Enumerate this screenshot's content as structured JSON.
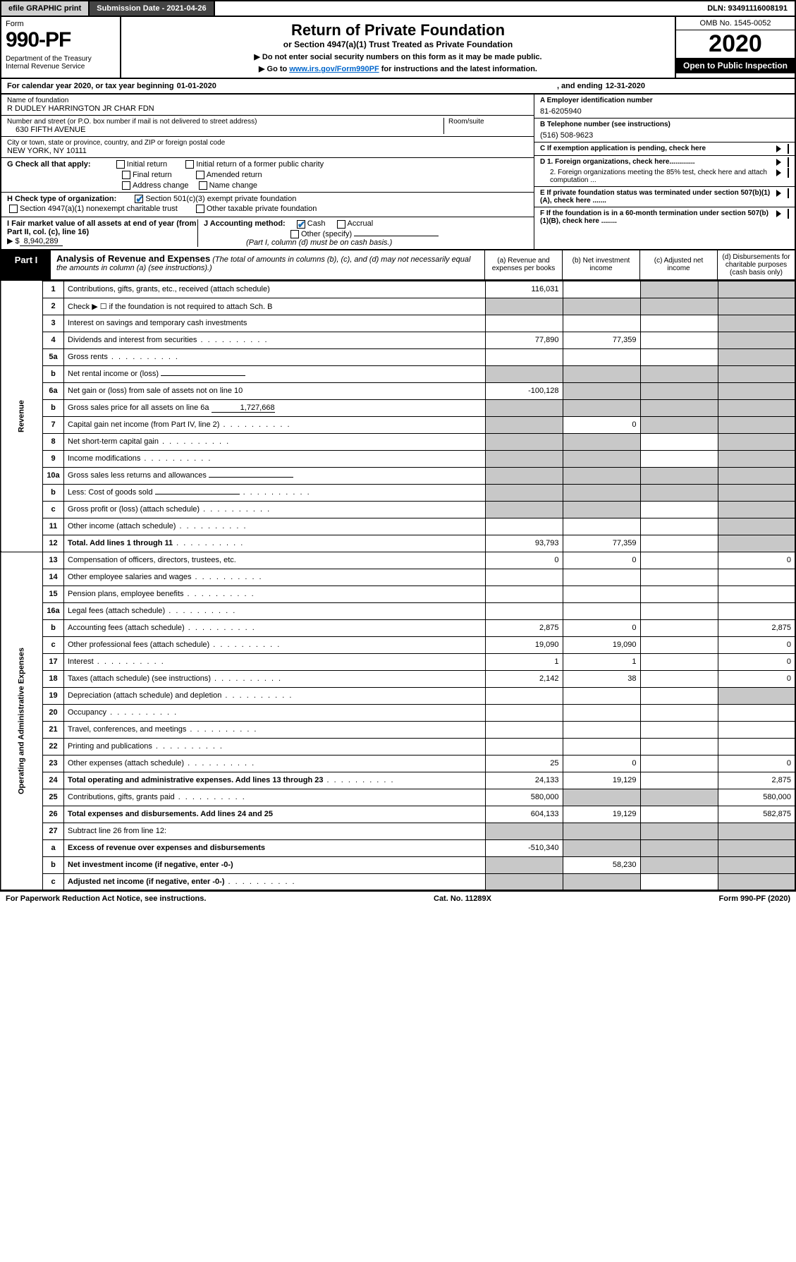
{
  "topbar": {
    "efile": "efile GRAPHIC print",
    "submission": "Submission Date - 2021-04-26",
    "dln": "DLN: 93491116008191"
  },
  "header": {
    "form_word": "Form",
    "form_num": "990-PF",
    "dept": "Department of the Treasury\nInternal Revenue Service",
    "title": "Return of Private Foundation",
    "subtitle": "or Section 4947(a)(1) Trust Treated as Private Foundation",
    "note1": "▶ Do not enter social security numbers on this form as it may be made public.",
    "note2_pre": "▶ Go to ",
    "note2_link": "www.irs.gov/Form990PF",
    "note2_post": " for instructions and the latest information.",
    "omb": "OMB No. 1545-0052",
    "year": "2020",
    "open": "Open to Public Inspection"
  },
  "calyear": {
    "pre": "For calendar year 2020, or tax year beginning ",
    "begin": "01-01-2020",
    "mid": ", and ending ",
    "end": "12-31-2020"
  },
  "entity": {
    "name_lbl": "Name of foundation",
    "name": "R DUDLEY HARRINGTON JR CHAR FDN",
    "addr_lbl": "Number and street (or P.O. box number if mail is not delivered to street address)",
    "addr": "630 FIFTH AVENUE",
    "room_lbl": "Room/suite",
    "city_lbl": "City or town, state or province, country, and ZIP or foreign postal code",
    "city": "NEW YORK, NY  10111",
    "a_lbl": "A Employer identification number",
    "a_val": "81-6205940",
    "b_lbl": "B Telephone number (see instructions)",
    "b_val": "(516) 508-9623",
    "c_lbl": "C If exemption application is pending, check here",
    "d1": "D 1. Foreign organizations, check here.............",
    "d2": "2. Foreign organizations meeting the 85% test, check here and attach computation ...",
    "e_lbl": "E  If private foundation status was terminated under section 507(b)(1)(A), check here .......",
    "f_lbl": "F  If the foundation is in a 60-month termination under section 507(b)(1)(B), check here ........"
  },
  "g": {
    "lbl": "G Check all that apply:",
    "opts": [
      "Initial return",
      "Initial return of a former public charity",
      "Final return",
      "Amended return",
      "Address change",
      "Name change"
    ]
  },
  "h": {
    "lbl": "H Check type of organization:",
    "o1": "Section 501(c)(3) exempt private foundation",
    "o2": "Section 4947(a)(1) nonexempt charitable trust",
    "o3": "Other taxable private foundation"
  },
  "i": {
    "lbl": "I Fair market value of all assets at end of year (from Part II, col. (c), line 16)",
    "pre": "▶ $",
    "val": "8,940,289"
  },
  "j": {
    "lbl": "J Accounting method:",
    "o1": "Cash",
    "o2": "Accrual",
    "o3": "Other (specify)",
    "note": "(Part I, column (d) must be on cash basis.)"
  },
  "part1": {
    "tab": "Part I",
    "title": "Analysis of Revenue and Expenses",
    "desc": "(The total of amounts in columns (b), (c), and (d) may not necessarily equal the amounts in column (a) (see instructions).)",
    "col_a": "(a)   Revenue and expenses per books",
    "col_b": "(b)   Net investment income",
    "col_c": "(c)   Adjusted net income",
    "col_d": "(d)   Disbursements for charitable purposes (cash basis only)"
  },
  "section_revenue": "Revenue",
  "section_expenses": "Operating and Administrative Expenses",
  "lines": [
    {
      "n": "1",
      "t": "Contributions, gifts, grants, etc., received (attach schedule)",
      "a": "116,031",
      "bg": false,
      "cg": true,
      "dg": true
    },
    {
      "n": "2",
      "t": "Check ▶ ☐ if the foundation is not required to attach Sch. B",
      "a": "",
      "ag": true,
      "bg": true,
      "cg": true,
      "dg": true,
      "dots": false,
      "raw": true
    },
    {
      "n": "3",
      "t": "Interest on savings and temporary cash investments",
      "a": "",
      "bg": false,
      "cg": false,
      "dg": true
    },
    {
      "n": "4",
      "t": "Dividends and interest from securities",
      "a": "77,890",
      "b": "77,359",
      "dg": true,
      "dots": true
    },
    {
      "n": "5a",
      "t": "Gross rents",
      "a": "",
      "dg": true,
      "dots": true
    },
    {
      "n": "b",
      "t": "Net rental income or (loss)",
      "a": "",
      "ag": true,
      "bg": true,
      "cg": true,
      "dg": true,
      "uline": true
    },
    {
      "n": "6a",
      "t": "Net gain or (loss) from sale of assets not on line 10",
      "a": "-100,128",
      "bg": true,
      "cg": true,
      "dg": true
    },
    {
      "n": "b",
      "t": "Gross sales price for all assets on line 6a",
      "a": "",
      "ag": true,
      "bg": true,
      "cg": true,
      "dg": true,
      "inline_val": "1,727,668"
    },
    {
      "n": "7",
      "t": "Capital gain net income (from Part IV, line 2)",
      "ag": true,
      "b": "0",
      "cg": true,
      "dg": true,
      "dots": true
    },
    {
      "n": "8",
      "t": "Net short-term capital gain",
      "ag": true,
      "bg": true,
      "dg": true,
      "dots": true
    },
    {
      "n": "9",
      "t": "Income modifications",
      "ag": true,
      "bg": true,
      "dg": true,
      "dots": true
    },
    {
      "n": "10a",
      "t": "Gross sales less returns and allowances",
      "ag": true,
      "bg": true,
      "cg": true,
      "dg": true,
      "uline": true
    },
    {
      "n": "b",
      "t": "Less: Cost of goods sold",
      "ag": true,
      "bg": true,
      "cg": true,
      "dg": true,
      "uline": true,
      "dots": true
    },
    {
      "n": "c",
      "t": "Gross profit or (loss) (attach schedule)",
      "ag": true,
      "bg": true,
      "dg": true,
      "dots": true
    },
    {
      "n": "11",
      "t": "Other income (attach schedule)",
      "dg": true,
      "dots": true
    },
    {
      "n": "12",
      "t": "Total. Add lines 1 through 11",
      "a": "93,793",
      "b": "77,359",
      "dg": true,
      "bold": true,
      "dots": true
    }
  ],
  "exp_lines": [
    {
      "n": "13",
      "t": "Compensation of officers, directors, trustees, etc.",
      "a": "0",
      "b": "0",
      "d": "0"
    },
    {
      "n": "14",
      "t": "Other employee salaries and wages",
      "dots": true
    },
    {
      "n": "15",
      "t": "Pension plans, employee benefits",
      "dots": true
    },
    {
      "n": "16a",
      "t": "Legal fees (attach schedule)",
      "dots": true
    },
    {
      "n": "b",
      "t": "Accounting fees (attach schedule)",
      "a": "2,875",
      "b": "0",
      "d": "2,875",
      "dots": true
    },
    {
      "n": "c",
      "t": "Other professional fees (attach schedule)",
      "a": "19,090",
      "b": "19,090",
      "d": "0",
      "dots": true
    },
    {
      "n": "17",
      "t": "Interest",
      "a": "1",
      "b": "1",
      "d": "0",
      "dots": true
    },
    {
      "n": "18",
      "t": "Taxes (attach schedule) (see instructions)",
      "a": "2,142",
      "b": "38",
      "d": "0",
      "dots": true
    },
    {
      "n": "19",
      "t": "Depreciation (attach schedule) and depletion",
      "dg": true,
      "dots": true
    },
    {
      "n": "20",
      "t": "Occupancy",
      "dots": true
    },
    {
      "n": "21",
      "t": "Travel, conferences, and meetings",
      "dots": true
    },
    {
      "n": "22",
      "t": "Printing and publications",
      "dots": true
    },
    {
      "n": "23",
      "t": "Other expenses (attach schedule)",
      "a": "25",
      "b": "0",
      "d": "0",
      "dots": true
    },
    {
      "n": "24",
      "t": "Total operating and administrative expenses. Add lines 13 through 23",
      "a": "24,133",
      "b": "19,129",
      "d": "2,875",
      "bold": true,
      "dots": true
    },
    {
      "n": "25",
      "t": "Contributions, gifts, grants paid",
      "a": "580,000",
      "bg": true,
      "cg": true,
      "d": "580,000",
      "dots": true
    },
    {
      "n": "26",
      "t": "Total expenses and disbursements. Add lines 24 and 25",
      "a": "604,133",
      "b": "19,129",
      "d": "582,875",
      "bold": true
    },
    {
      "n": "27",
      "t": "Subtract line 26 from line 12:",
      "ag": true,
      "bg": true,
      "cg": true,
      "dg": true
    },
    {
      "n": "a",
      "t": "Excess of revenue over expenses and disbursements",
      "a": "-510,340",
      "bg": true,
      "cg": true,
      "dg": true,
      "bold": true
    },
    {
      "n": "b",
      "t": "Net investment income (if negative, enter -0-)",
      "ag": true,
      "b": "58,230",
      "cg": true,
      "dg": true,
      "bold": true
    },
    {
      "n": "c",
      "t": "Adjusted net income (if negative, enter -0-)",
      "ag": true,
      "bg": true,
      "dg": true,
      "bold": true,
      "dots": true
    }
  ],
  "footer": {
    "left": "For Paperwork Reduction Act Notice, see instructions.",
    "mid": "Cat. No. 11289X",
    "right": "Form 990-PF (2020)"
  },
  "colors": {
    "grey_btn": "#d0d0d0",
    "dark_btn": "#444444",
    "grey_cell": "#c8c8c8",
    "link": "#0066cc",
    "check": "#1a6db3"
  }
}
